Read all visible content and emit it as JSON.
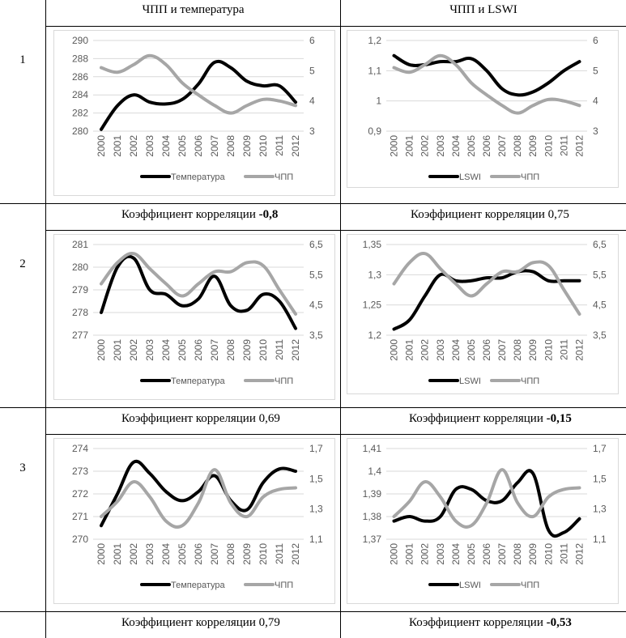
{
  "table": {
    "col1_header": "ЧПП и температура",
    "col2_header": "ЧПП и LSWI",
    "rows": [
      {
        "num": "1",
        "corr_left": {
          "label": "Коэффициент корреляции ",
          "value": "-0,8",
          "bold": true
        },
        "corr_right": {
          "label": "Коэффициент корреляции ",
          "value": "0,75",
          "bold": false
        }
      },
      {
        "num": "2",
        "corr_left": {
          "label": "Коэффициент корреляции ",
          "value": "0,69",
          "bold": false
        },
        "corr_right": {
          "label": "Коэффициент корреляции ",
          "value": "-0,15",
          "bold": true
        }
      },
      {
        "num": "3",
        "corr_left": {
          "label": "Коэффициент корреляции ",
          "value": "0,79",
          "bold": false
        },
        "corr_right": {
          "label": "Коэффициент корреляции ",
          "value": "-0,53",
          "bold": true
        }
      }
    ]
  },
  "colors": {
    "primary": "#000000",
    "secondary": "#a6a6a6",
    "grid": "#d9d9d9",
    "axis_text": "#595959"
  },
  "chart_data": [
    {
      "id": "r1-temp",
      "type": "line",
      "xlabel": "",
      "ylabel": "",
      "x": [
        "2000",
        "2001",
        "2002",
        "2003",
        "2004",
        "2005",
        "2006",
        "2007",
        "2008",
        "2009",
        "2010",
        "2011",
        "2012"
      ],
      "y_ticks_left": [
        "280",
        "282",
        "284",
        "286",
        "288",
        "290"
      ],
      "ylim_left": [
        280,
        290
      ],
      "y_ticks_right": [
        "3",
        "4",
        "5",
        "6"
      ],
      "ylim_right": [
        3,
        6
      ],
      "series": [
        {
          "name": "Температура",
          "axis": "left",
          "color": "#000000",
          "values": [
            280.2,
            282.8,
            284.0,
            283.2,
            283.0,
            283.5,
            285.2,
            287.6,
            287.0,
            285.5,
            285.0,
            285.0,
            283.2
          ]
        },
        {
          "name": "ЧПП",
          "axis": "right",
          "color": "#a6a6a6",
          "values": [
            5.1,
            4.95,
            5.2,
            5.5,
            5.2,
            4.6,
            4.2,
            3.85,
            3.6,
            3.85,
            4.05,
            4.0,
            3.85
          ]
        }
      ]
    },
    {
      "id": "r1-lswi",
      "type": "line",
      "xlabel": "",
      "ylabel": "",
      "x": [
        "2000",
        "2001",
        "2002",
        "2003",
        "2004",
        "2005",
        "2006",
        "2007",
        "2008",
        "2009",
        "2010",
        "2011",
        "2012"
      ],
      "y_ticks_left": [
        "0,9",
        "1",
        "1,1",
        "1,2"
      ],
      "ylim_left": [
        0.9,
        1.2
      ],
      "y_ticks_right": [
        "3",
        "4",
        "5",
        "6"
      ],
      "ylim_right": [
        3,
        6
      ],
      "series": [
        {
          "name": "LSWI",
          "axis": "left",
          "color": "#000000",
          "values": [
            1.15,
            1.12,
            1.12,
            1.13,
            1.13,
            1.14,
            1.1,
            1.04,
            1.02,
            1.03,
            1.06,
            1.1,
            1.13
          ]
        },
        {
          "name": "ЧПП",
          "axis": "right",
          "color": "#a6a6a6",
          "values": [
            5.1,
            4.95,
            5.2,
            5.5,
            5.2,
            4.6,
            4.2,
            3.85,
            3.6,
            3.85,
            4.05,
            4.0,
            3.85
          ]
        }
      ]
    },
    {
      "id": "r2-temp",
      "type": "line",
      "xlabel": "",
      "ylabel": "",
      "x": [
        "2000",
        "2001",
        "2002",
        "2003",
        "2004",
        "2005",
        "2006",
        "2007",
        "2008",
        "2009",
        "2010",
        "2011",
        "2012"
      ],
      "y_ticks_left": [
        "277",
        "278",
        "279",
        "280",
        "281"
      ],
      "ylim_left": [
        277,
        281
      ],
      "y_ticks_right": [
        "3,5",
        "4,5",
        "5,5",
        "6,5"
      ],
      "ylim_right": [
        3.5,
        6.5
      ],
      "series": [
        {
          "name": "Температура",
          "axis": "left",
          "color": "#000000",
          "values": [
            278.0,
            280.0,
            280.4,
            279.0,
            278.8,
            278.3,
            278.6,
            279.6,
            278.3,
            278.1,
            278.8,
            278.5,
            277.3
          ]
        },
        {
          "name": "ЧПП",
          "axis": "right",
          "color": "#a6a6a6",
          "values": [
            5.2,
            5.9,
            6.2,
            5.7,
            5.2,
            4.8,
            5.2,
            5.6,
            5.6,
            5.9,
            5.8,
            5.0,
            4.2
          ]
        }
      ]
    },
    {
      "id": "r2-lswi",
      "type": "line",
      "xlabel": "",
      "ylabel": "",
      "x": [
        "2000",
        "2001",
        "2002",
        "2003",
        "2004",
        "2005",
        "2006",
        "2007",
        "2008",
        "2009",
        "2010",
        "2011",
        "2012"
      ],
      "y_ticks_left": [
        "1,2",
        "1,25",
        "1,3",
        "1,35"
      ],
      "ylim_left": [
        1.2,
        1.35
      ],
      "y_ticks_right": [
        "3,5",
        "4,5",
        "5,5",
        "6,5"
      ],
      "ylim_right": [
        3.5,
        6.5
      ],
      "series": [
        {
          "name": "LSWI",
          "axis": "left",
          "color": "#000000",
          "values": [
            1.21,
            1.225,
            1.265,
            1.3,
            1.29,
            1.29,
            1.295,
            1.295,
            1.305,
            1.305,
            1.29,
            1.29,
            1.29
          ]
        },
        {
          "name": "ЧПП",
          "axis": "right",
          "color": "#a6a6a6",
          "values": [
            5.2,
            5.9,
            6.2,
            5.7,
            5.2,
            4.8,
            5.2,
            5.6,
            5.6,
            5.9,
            5.8,
            5.0,
            4.2
          ]
        }
      ]
    },
    {
      "id": "r3-temp",
      "type": "line",
      "xlabel": "",
      "ylabel": "",
      "x": [
        "2000",
        "2001",
        "2002",
        "2003",
        "2004",
        "2005",
        "2006",
        "2007",
        "2008",
        "2009",
        "2010",
        "2011",
        "2012"
      ],
      "y_ticks_left": [
        "270",
        "271",
        "272",
        "273",
        "274"
      ],
      "ylim_left": [
        270,
        274
      ],
      "y_ticks_right": [
        "1,1",
        "1,3",
        "1,5",
        "1,7"
      ],
      "ylim_right": [
        1.1,
        1.7
      ],
      "series": [
        {
          "name": "Температура",
          "axis": "left",
          "color": "#000000",
          "values": [
            270.6,
            272.0,
            273.4,
            272.9,
            272.1,
            271.7,
            272.1,
            272.8,
            271.7,
            271.3,
            272.5,
            273.1,
            273.0
          ]
        },
        {
          "name": "ЧПП",
          "axis": "right",
          "color": "#a6a6a6",
          "values": [
            1.25,
            1.35,
            1.48,
            1.38,
            1.22,
            1.19,
            1.34,
            1.56,
            1.34,
            1.25,
            1.38,
            1.43,
            1.44
          ]
        }
      ]
    },
    {
      "id": "r3-lswi",
      "type": "line",
      "xlabel": "",
      "ylabel": "",
      "x": [
        "2000",
        "2001",
        "2002",
        "2003",
        "2004",
        "2005",
        "2006",
        "2007",
        "2008",
        "2009",
        "2010",
        "2011",
        "2012"
      ],
      "y_ticks_left": [
        "1,37",
        "1,38",
        "1,39",
        "1,4",
        "1,41"
      ],
      "ylim_left": [
        1.37,
        1.41
      ],
      "y_ticks_right": [
        "1,1",
        "1,3",
        "1,5",
        "1,7"
      ],
      "ylim_right": [
        1.1,
        1.7
      ],
      "series": [
        {
          "name": "LSWI",
          "axis": "left",
          "color": "#000000",
          "values": [
            1.378,
            1.38,
            1.378,
            1.38,
            1.392,
            1.392,
            1.387,
            1.387,
            1.395,
            1.399,
            1.374,
            1.373,
            1.379
          ]
        },
        {
          "name": "ЧПП",
          "axis": "right",
          "color": "#a6a6a6",
          "values": [
            1.25,
            1.35,
            1.48,
            1.38,
            1.22,
            1.19,
            1.34,
            1.56,
            1.34,
            1.25,
            1.38,
            1.43,
            1.44
          ]
        }
      ]
    }
  ]
}
